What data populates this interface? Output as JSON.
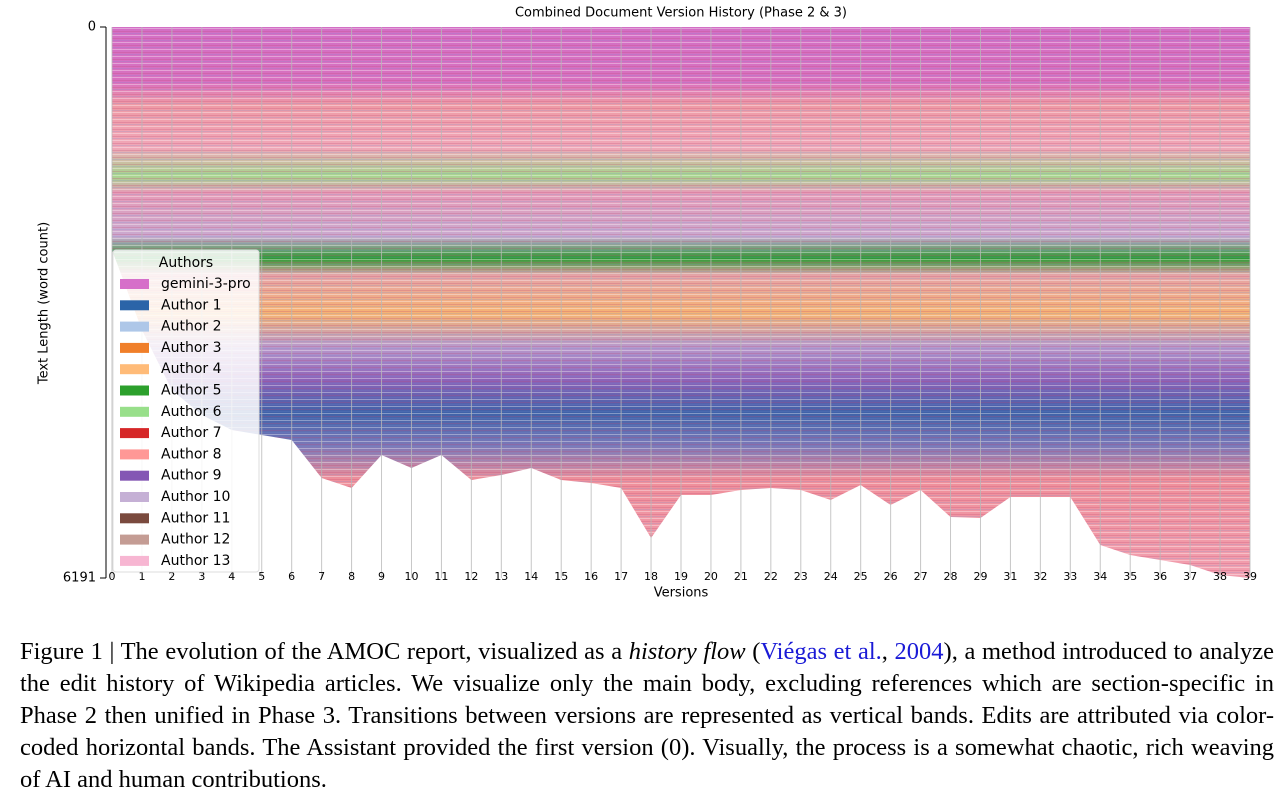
{
  "chart_data": {
    "type": "area",
    "title": "Combined Document Version History (Phase 2 & 3)",
    "x_label": "Versions",
    "y_label": "Text Length (word count)",
    "categories": [
      "0",
      "1",
      "2",
      "3",
      "4",
      "5",
      "6",
      "7",
      "8",
      "9",
      "10",
      "11",
      "12",
      "13",
      "14",
      "15",
      "16",
      "17",
      "18",
      "19",
      "20",
      "21",
      "22",
      "23",
      "24",
      "25",
      "26",
      "27",
      "28",
      "29",
      "31",
      "32",
      "33",
      "34",
      "35",
      "36",
      "37",
      "38",
      "39"
    ],
    "values": [
      2506,
      3404,
      4079,
      4360,
      4528,
      4584,
      4640,
      5067,
      5180,
      4809,
      4955,
      4809,
      5090,
      5034,
      4955,
      5090,
      5124,
      5180,
      5742,
      5258,
      5258,
      5202,
      5180,
      5202,
      5315,
      5146,
      5371,
      5202,
      5506,
      5517,
      5281,
      5281,
      5281,
      5820,
      5933,
      5989,
      6045,
      6157,
      6191
    ],
    "ylim": [
      0,
      6191
    ],
    "yticks": [
      0,
      6191
    ],
    "y_inverted": true,
    "legend": {
      "title": "Authors",
      "position": "lower left",
      "entries": [
        {
          "name": "gemini-3-pro",
          "color": "#d66fc9"
        },
        {
          "name": "Author 1",
          "color": "#2b64a8"
        },
        {
          "name": "Author 2",
          "color": "#aec7e8"
        },
        {
          "name": "Author 3",
          "color": "#f07f2a"
        },
        {
          "name": "Author 4",
          "color": "#ffbb78"
        },
        {
          "name": "Author 5",
          "color": "#2ca02c"
        },
        {
          "name": "Author 6",
          "color": "#98df8a"
        },
        {
          "name": "Author 7",
          "color": "#d62728"
        },
        {
          "name": "Author 8",
          "color": "#ff9896"
        },
        {
          "name": "Author 9",
          "color": "#8457b4"
        },
        {
          "name": "Author 10",
          "color": "#c5b0d5"
        },
        {
          "name": "Author 11",
          "color": "#7a4a3e"
        },
        {
          "name": "Author 12",
          "color": "#c49c94"
        },
        {
          "name": "Author 13",
          "color": "#f7b6d2"
        }
      ]
    }
  },
  "caption": {
    "segments": [
      {
        "text": "Figure 1 | The evolution of the AMOC report, visualized as a "
      },
      {
        "text": "history flow",
        "style": "italic"
      },
      {
        "text": " ("
      },
      {
        "text": "Viégas et al.",
        "style": "link"
      },
      {
        "text": ", "
      },
      {
        "text": "2004",
        "style": "link"
      },
      {
        "text": "), a method introduced to analyze the edit history of Wikipedia articles.  We visualize only the main body, excluding references which are section-specific in Phase 2 then unified in Phase 3.  Transitions between versions are represented as vertical bands. Edits are attributed via color-coded horizontal bands. The Assistant provided the first version (0). Visually, the process is a somewhat chaotic, rich weaving of AI and human contributions."
      }
    ]
  }
}
